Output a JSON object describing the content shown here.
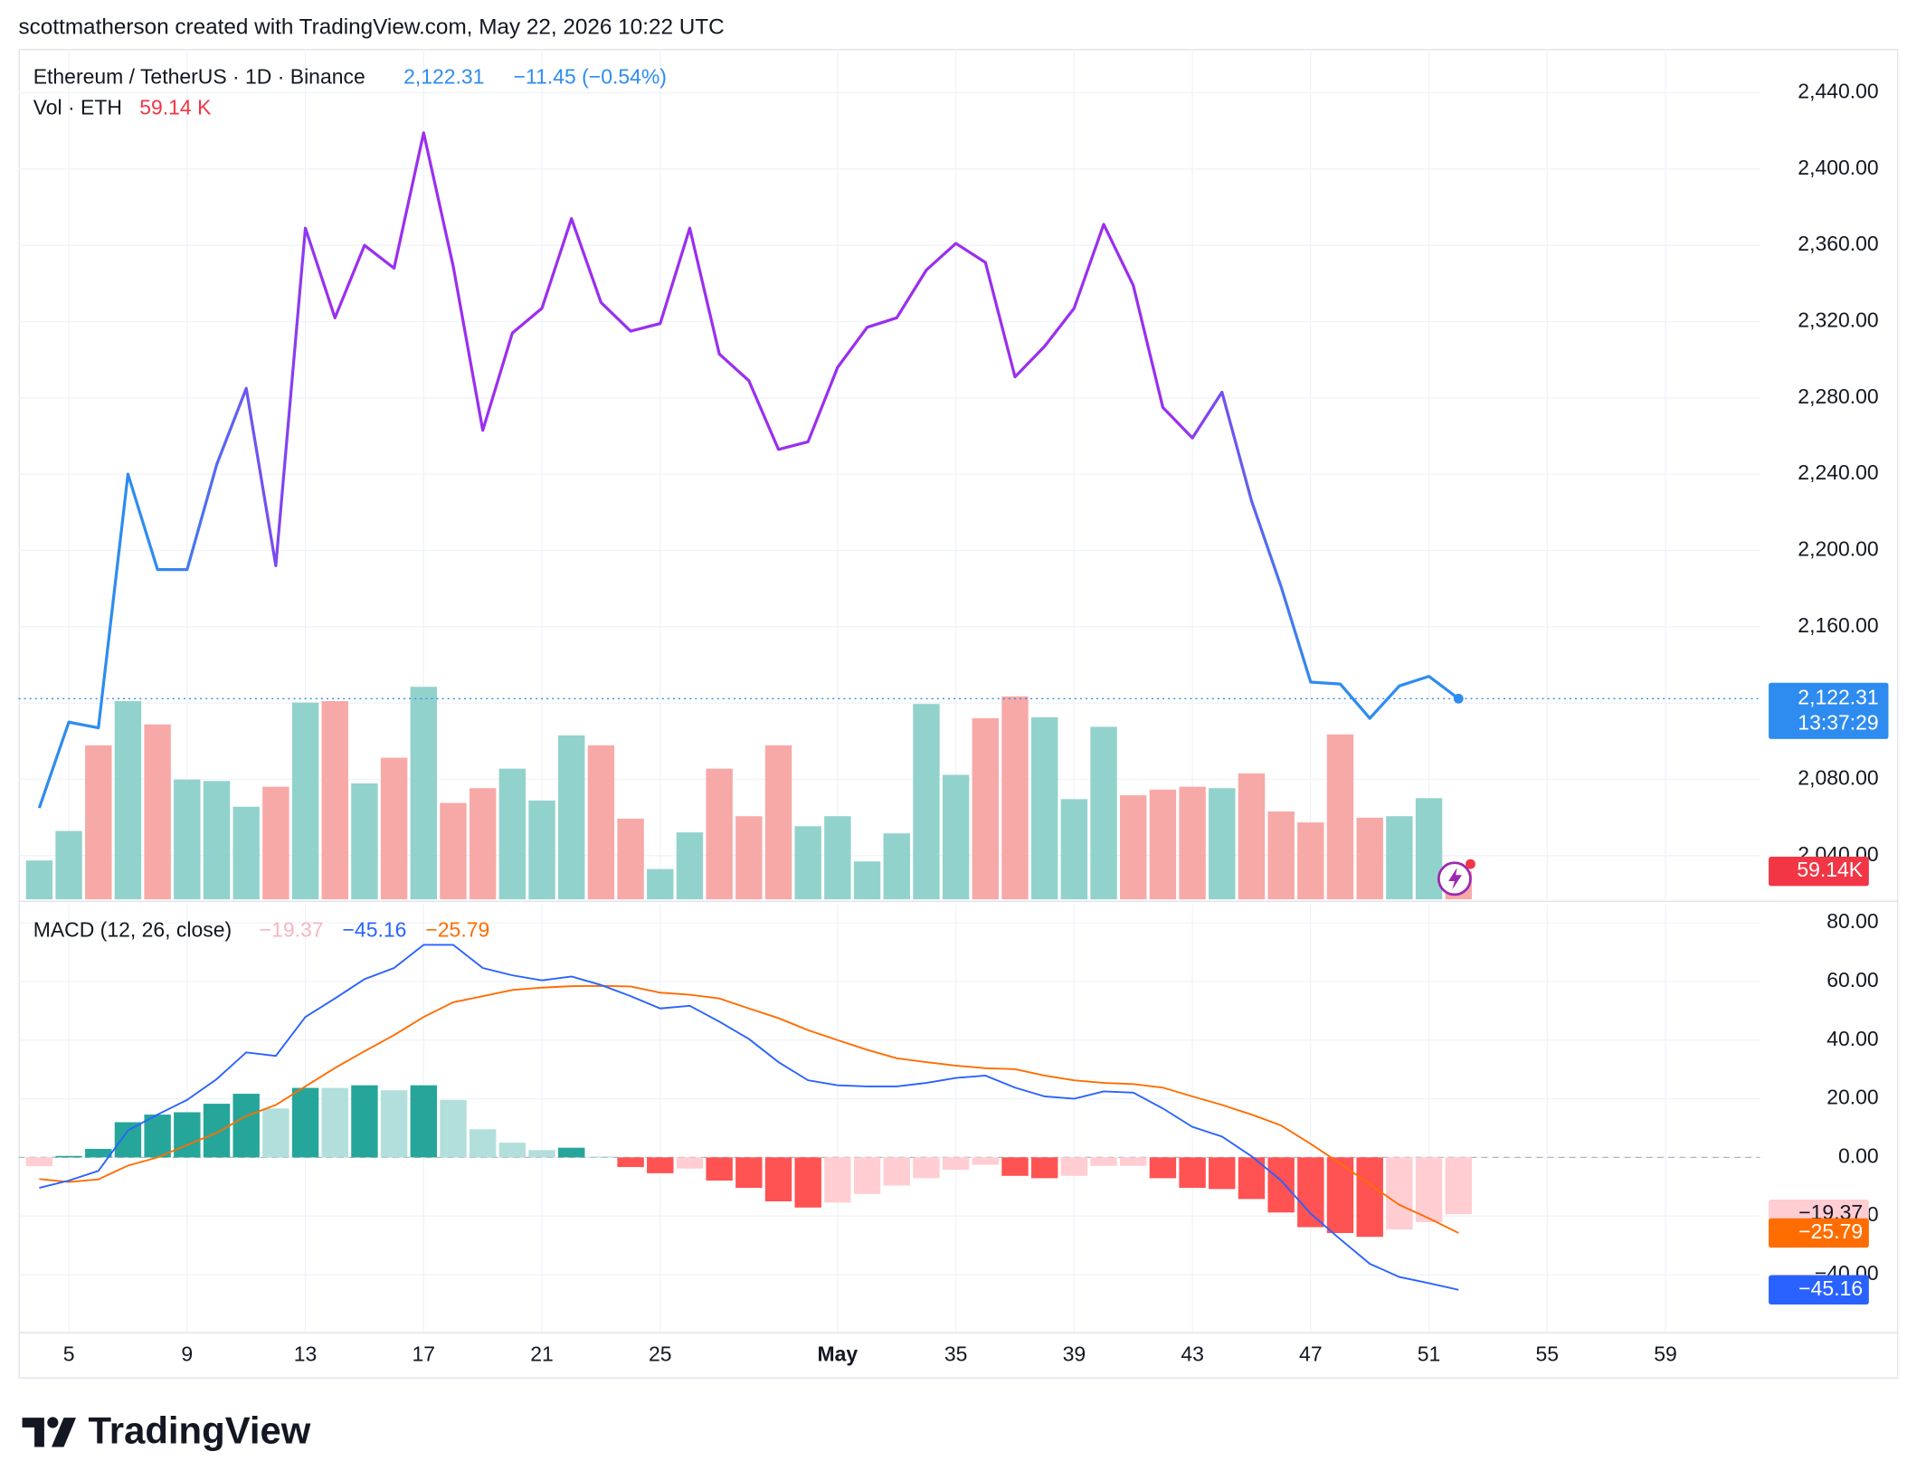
{
  "header": "scottmatherson created with TradingView.com, May 22, 2026 10:22 UTC",
  "brand": "TradingView",
  "chart_data": [
    {
      "type": "line",
      "title": "Ethereum / TetherUS · 1D · Binance",
      "last_label": "2,122.31",
      "change_label": "−11.45 (−0.54%)",
      "countdown": "13:37:29",
      "colors": [
        "#2e8cf0",
        "#9a2ff0"
      ],
      "badge_color": "#2e8cf0",
      "x": [
        4,
        5,
        6,
        7,
        8,
        9,
        10,
        11,
        12,
        13,
        14,
        15,
        16,
        17,
        18,
        19,
        20,
        21,
        22,
        23,
        24,
        25,
        26,
        27,
        28,
        29,
        30,
        31,
        32,
        33,
        34,
        35,
        36,
        37,
        38,
        39,
        40,
        41,
        42,
        43,
        44,
        45,
        46,
        47,
        48,
        49,
        50,
        51,
        52
      ],
      "values": [
        2065,
        2110,
        2107,
        2240,
        2190,
        2190,
        2245,
        2285,
        2192,
        2369,
        2322,
        2360,
        2348,
        2419,
        2349,
        2263,
        2314,
        2327,
        2374,
        2330,
        2315,
        2319,
        2369,
        2303,
        2289,
        2253,
        2257,
        2296,
        2317,
        2322,
        2347,
        2361,
        2351,
        2291,
        2307,
        2327,
        2371,
        2339,
        2275,
        2259,
        2283,
        2226,
        2181,
        2131,
        2130,
        2112,
        2129,
        2134,
        2122.31
      ],
      "ylim": [
        2017,
        2463
      ],
      "yticks": [
        {
          "value": 2040,
          "label": "2,040.00"
        },
        {
          "value": 2080,
          "label": "2,080.00"
        },
        {
          "value": 2120,
          "label": "2,120.00"
        },
        {
          "value": 2160,
          "label": "2,160.00"
        },
        {
          "value": 2200,
          "label": "2,200.00"
        },
        {
          "value": 2240,
          "label": "2,240.00"
        },
        {
          "value": 2280,
          "label": "2,280.00"
        },
        {
          "value": 2320,
          "label": "2,320.00"
        },
        {
          "value": 2360,
          "label": "2,360.00"
        },
        {
          "value": 2400,
          "label": "2,400.00"
        },
        {
          "value": 2440,
          "label": "2,440.00"
        }
      ],
      "grid": true
    },
    {
      "type": "bar",
      "title": "Vol · ETH",
      "legend_value": "59.14 K",
      "last_label": "59.14K",
      "badge_color": "#f23645",
      "x": [
        4,
        5,
        6,
        7,
        8,
        9,
        10,
        11,
        12,
        13,
        14,
        15,
        16,
        17,
        18,
        19,
        20,
        21,
        22,
        23,
        24,
        25,
        26,
        27,
        28,
        29,
        30,
        31,
        32,
        33,
        34,
        35,
        36,
        37,
        38,
        39,
        40,
        41,
        42,
        43,
        44,
        45,
        46,
        47,
        48,
        49,
        50,
        51,
        52
      ],
      "values": [
        82,
        144,
        324,
        417,
        368,
        252,
        249,
        195,
        237,
        414,
        417,
        244,
        298,
        447,
        203,
        234,
        275,
        208,
        345,
        324,
        170,
        64,
        141,
        275,
        175,
        324,
        154,
        175,
        80,
        139,
        411,
        262,
        381,
        427,
        383,
        211,
        363,
        219,
        231,
        237,
        234,
        265,
        185,
        162,
        347,
        172,
        175,
        213,
        59.14
      ],
      "colors": [
        "#92d2cc",
        "#92d2cc",
        "#f7a9a7",
        "#92d2cc",
        "#f7a9a7",
        "#92d2cc",
        "#92d2cc",
        "#92d2cc",
        "#f7a9a7",
        "#92d2cc",
        "#f7a9a7",
        "#92d2cc",
        "#f7a9a7",
        "#92d2cc",
        "#f7a9a7",
        "#f7a9a7",
        "#92d2cc",
        "#92d2cc",
        "#92d2cc",
        "#f7a9a7",
        "#f7a9a7",
        "#92d2cc",
        "#92d2cc",
        "#f7a9a7",
        "#f7a9a7",
        "#f7a9a7",
        "#92d2cc",
        "#92d2cc",
        "#92d2cc",
        "#92d2cc",
        "#92d2cc",
        "#92d2cc",
        "#f7a9a7",
        "#f7a9a7",
        "#92d2cc",
        "#92d2cc",
        "#92d2cc",
        "#f7a9a7",
        "#f7a9a7",
        "#f7a9a7",
        "#92d2cc",
        "#f7a9a7",
        "#f7a9a7",
        "#f7a9a7",
        "#f7a9a7",
        "#f7a9a7",
        "#92d2cc",
        "#92d2cc",
        "#f7a9a7"
      ]
    },
    {
      "type": "macd",
      "title": "MACD (12, 26, close)",
      "x": [
        4,
        5,
        6,
        7,
        8,
        9,
        10,
        11,
        12,
        13,
        14,
        15,
        16,
        17,
        18,
        19,
        20,
        21,
        22,
        23,
        24,
        25,
        26,
        27,
        28,
        29,
        30,
        31,
        32,
        33,
        34,
        35,
        36,
        37,
        38,
        39,
        40,
        41,
        42,
        43,
        44,
        45,
        46,
        47,
        48,
        49,
        50,
        51,
        52
      ],
      "histogram": {
        "label": "−19.37",
        "color": "#f7b6bf",
        "badge_color": "#ffcdd2",
        "values": [
          -3,
          0.5,
          2.9,
          12,
          14.6,
          15.4,
          18.3,
          21.7,
          16.7,
          23.7,
          23.7,
          24.6,
          22.9,
          24.6,
          19.6,
          9.6,
          5,
          2.5,
          3.3,
          0.3,
          -3.3,
          -5.4,
          -3.8,
          -7.9,
          -10.4,
          -15,
          -17.1,
          -15.4,
          -12.5,
          -9.6,
          -7.1,
          -4.2,
          -2.5,
          -6.3,
          -7.1,
          -6.3,
          -2.9,
          -2.9,
          -7.1,
          -10.4,
          -10.8,
          -14.2,
          -18.8,
          -23.8,
          -25.8,
          -27.1,
          -24.6,
          -22.1,
          -19.37
        ],
        "colors": [
          "#ffcdd2",
          "#26a69a",
          "#26a69a",
          "#26a69a",
          "#26a69a",
          "#26a69a",
          "#26a69a",
          "#26a69a",
          "#b2dfdb",
          "#26a69a",
          "#b2dfdb",
          "#26a69a",
          "#b2dfdb",
          "#26a69a",
          "#b2dfdb",
          "#b2dfdb",
          "#b2dfdb",
          "#b2dfdb",
          "#26a69a",
          "#b2dfdb",
          "#ff5252",
          "#ff5252",
          "#ffcdd2",
          "#ff5252",
          "#ff5252",
          "#ff5252",
          "#ff5252",
          "#ffcdd2",
          "#ffcdd2",
          "#ffcdd2",
          "#ffcdd2",
          "#ffcdd2",
          "#ffcdd2",
          "#ff5252",
          "#ff5252",
          "#ffcdd2",
          "#ffcdd2",
          "#ffcdd2",
          "#ff5252",
          "#ff5252",
          "#ff5252",
          "#ff5252",
          "#ff5252",
          "#ff5252",
          "#ff5252",
          "#ff5252",
          "#ffcdd2",
          "#ffcdd2",
          "#ffcdd2"
        ]
      },
      "macd": {
        "label": "−45.16",
        "color": "#2962ff",
        "values": [
          -10.4,
          -7.9,
          -4.6,
          9.2,
          14.6,
          19.6,
          26.7,
          35.8,
          34.6,
          47.9,
          54.2,
          60.8,
          64.6,
          72.5,
          72.5,
          64.6,
          62.1,
          60.4,
          61.7,
          58.8,
          55,
          50.8,
          51.7,
          46.3,
          40.4,
          32.5,
          26.3,
          24.6,
          24.2,
          24.2,
          25.4,
          27.1,
          27.9,
          23.8,
          20.8,
          20,
          22.5,
          22.1,
          16.7,
          10.4,
          7.1,
          0.4,
          -7.9,
          -19.2,
          -27.9,
          -36.3,
          -40.8,
          -42.9,
          -45.16
        ]
      },
      "signal": {
        "label": "−25.79",
        "color": "#ff6d00",
        "values": [
          -7.4,
          -8.4,
          -7.5,
          -2.8,
          0,
          4.2,
          8.4,
          14.1,
          17.9,
          24.2,
          30.5,
          36.2,
          41.7,
          47.9,
          52.9,
          55,
          57.1,
          57.9,
          58.4,
          58.5,
          58.3,
          56.2,
          55.5,
          54.2,
          50.8,
          47.5,
          43.4,
          40,
          36.7,
          33.8,
          32.5,
          31.3,
          30.4,
          30.1,
          27.9,
          26.3,
          25.4,
          25,
          23.8,
          20.8,
          17.9,
          14.6,
          10.9,
          4.6,
          -2.1,
          -9.2,
          -16.2,
          -20.8,
          -25.79
        ]
      },
      "ylim": [
        -59.6,
        86.3
      ],
      "yticks": [
        {
          "value": 80,
          "label": "80.00"
        },
        {
          "value": 60,
          "label": "60.00"
        },
        {
          "value": 40,
          "label": "40.00"
        },
        {
          "value": 20,
          "label": "20.00"
        },
        {
          "value": 0,
          "label": "0.00"
        },
        {
          "value": -20,
          "label": "−20.00"
        },
        {
          "value": -40,
          "label": "−40.00"
        }
      ],
      "xlim": [
        3.3,
        62.2
      ],
      "xticks": [
        5,
        9,
        13,
        17,
        21,
        25,
        {
          "value": 31,
          "label": "May"
        },
        35,
        39,
        43,
        47,
        51,
        55,
        59
      ],
      "grid": true
    }
  ]
}
